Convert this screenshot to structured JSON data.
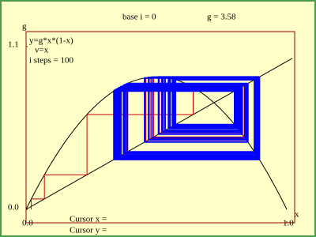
{
  "chart_data": {
    "type": "cobweb",
    "base_label": "base i = 0",
    "g": {
      "value": 3.58,
      "label": "g = 3.58"
    },
    "steps": {
      "value": 100,
      "label": "i steps = 100"
    },
    "curve_label": "y=g*x*(1-x)",
    "diagonal_label": "v=x",
    "x_axis_label": "x",
    "y_axis_label": "g",
    "x0": 0.02,
    "xlim": [
      0,
      1
    ],
    "ylim": [
      0,
      1.1
    ],
    "xticks": [
      {
        "value": 0,
        "label": "0.0"
      },
      {
        "value": 1,
        "label": "1.0"
      }
    ],
    "yticks": [
      {
        "value": 0,
        "label": "0.0"
      },
      {
        "value": 1.1,
        "label": "1.1"
      }
    ],
    "line_colors": [
      "#cc0000",
      "#0000ff"
    ],
    "cursor_x_label": "Cursor x =",
    "cursor_y_label": "Cursor y ="
  }
}
